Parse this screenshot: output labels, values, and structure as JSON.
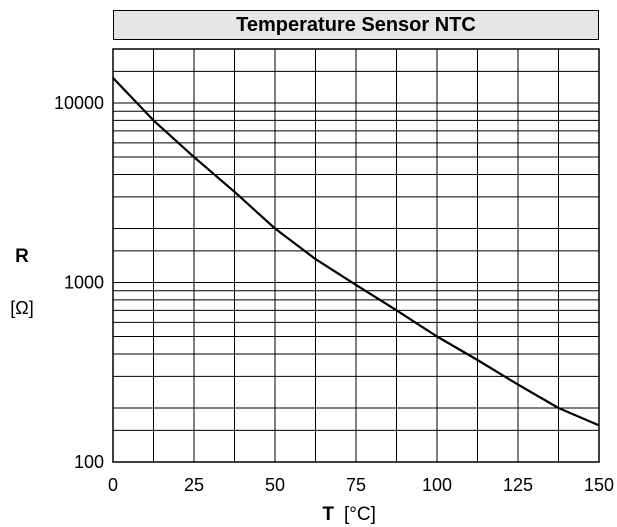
{
  "chart_data": {
    "type": "line",
    "title": "Temperature Sensor NTC",
    "xlabel": "T",
    "xlabel_unit": "[°C]",
    "ylabel": "R",
    "ylabel_unit": "[Ω]",
    "xlim": [
      0,
      150
    ],
    "ylim": [
      100,
      20000
    ],
    "yscale": "log",
    "grid": true,
    "x_ticks": [
      0,
      25,
      50,
      75,
      100,
      125,
      150
    ],
    "y_ticks": [
      100,
      1000,
      10000
    ],
    "series": [
      {
        "x": [
          0,
          12.5,
          25,
          37.5,
          50,
          62.5,
          75,
          87.5,
          100,
          112.5,
          125,
          137.5,
          150
        ],
        "values": [
          13800,
          8000,
          5000,
          3200,
          2000,
          1350,
          970,
          700,
          500,
          370,
          270,
          200,
          160
        ]
      }
    ]
  },
  "colors": {
    "line": "#000000",
    "grid": "#000000",
    "title_background": "#e6e6e6"
  }
}
